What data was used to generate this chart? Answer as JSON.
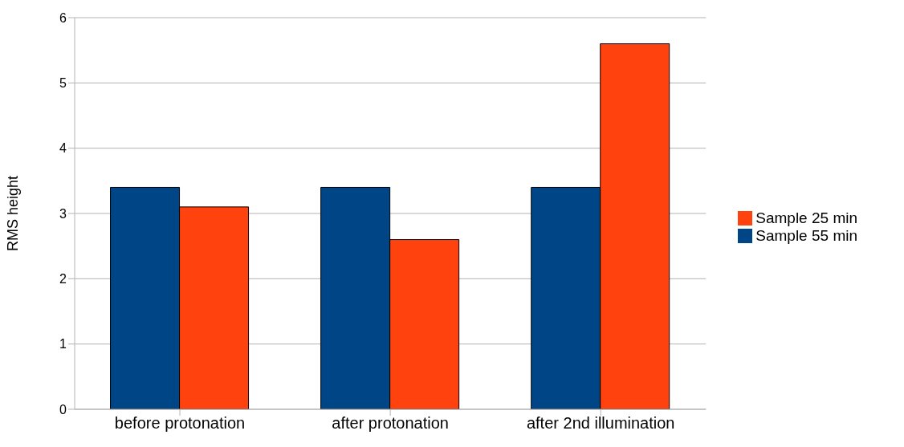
{
  "chart_data": {
    "type": "bar",
    "ylabel": "RMS height",
    "categories": [
      "before protonation",
      "after protonation",
      "after 2nd illumination"
    ],
    "series": [
      {
        "name": "Sample 55 min",
        "color": "#004586",
        "values": [
          3.4,
          3.4,
          3.4
        ]
      },
      {
        "name": "Sample 25 min",
        "color": "#ff420e",
        "values": [
          3.1,
          2.6,
          5.6
        ]
      }
    ],
    "ylim": [
      0,
      6
    ],
    "yticks": [
      0,
      1,
      2,
      3,
      4,
      5,
      6
    ],
    "grid": "y",
    "legend": "right"
  }
}
